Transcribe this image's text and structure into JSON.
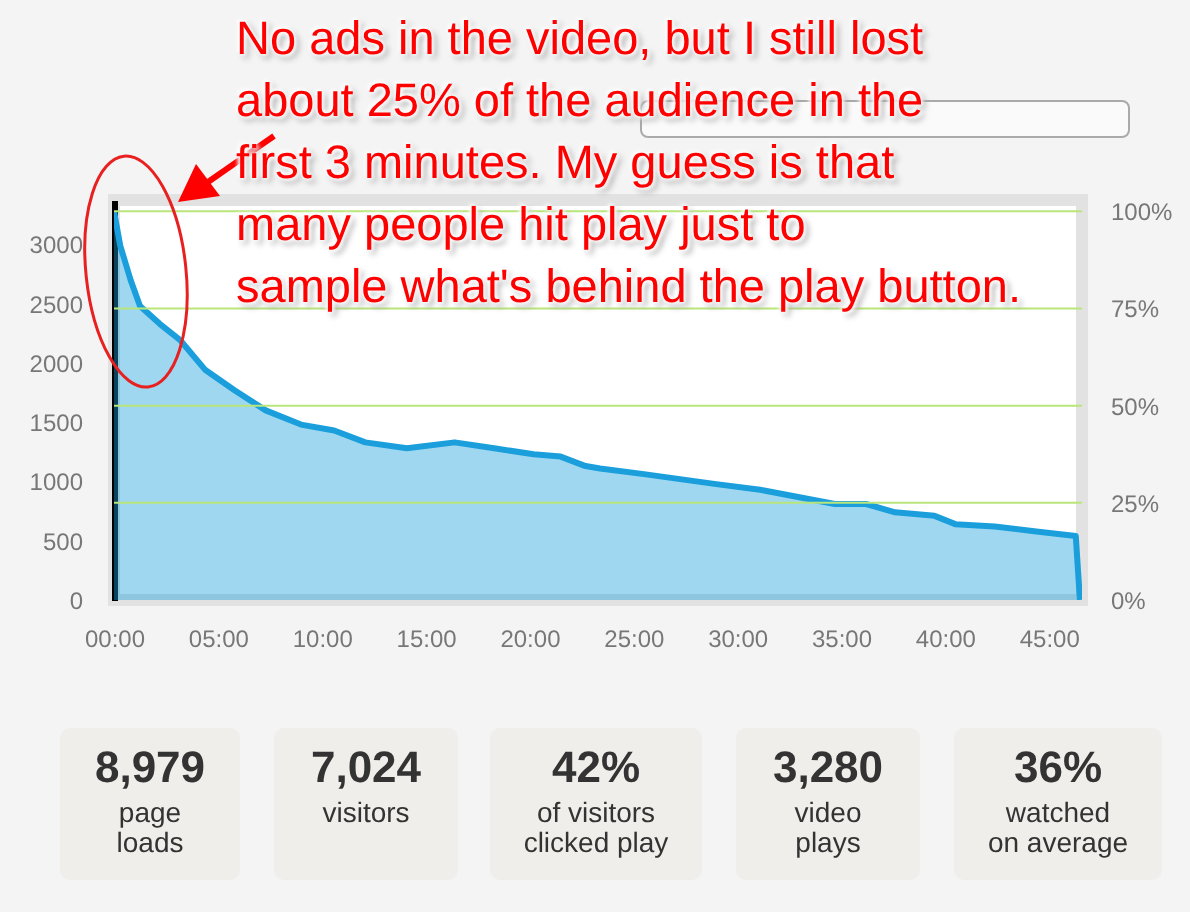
{
  "chart_data": [
    {
      "type": "area",
      "annotations": [
        "No ads in the video, but I still lost\nabout 25% of the audience in the\nfirst 3 minutes. My guess is that\nmany people hit play just to\nsample what's behind the play button."
      ],
      "x": [
        0,
        0.3,
        0.8,
        1.25,
        2.2,
        3.2,
        4.4,
        5.8,
        7.3,
        9.0,
        10.6,
        12.1,
        14.1,
        16.4,
        18.3,
        20.2,
        21.5,
        22.7,
        23.4,
        25.6,
        28.9,
        31.1,
        34.7,
        36.2,
        37.6,
        39.5,
        40.5,
        42.4,
        44.3,
        46.3,
        46.5
      ],
      "series": [
        {
          "color": "#1a9fdc",
          "values": [
            3280,
            2990,
            2700,
            2480,
            2330,
            2190,
            1940,
            1770,
            1600,
            1480,
            1430,
            1330,
            1280,
            1330,
            1280,
            1230,
            1210,
            1130,
            1110,
            1060,
            980,
            930,
            810,
            810,
            740,
            710,
            640,
            620,
            580,
            540,
            0
          ]
        }
      ],
      "xlim": [
        0,
        46.6
      ],
      "xticks": [
        {
          "value": 0,
          "label": "00:00"
        },
        {
          "value": 5,
          "label": "05:00"
        },
        {
          "value": 10,
          "label": "10:00"
        },
        {
          "value": 15,
          "label": "15:00"
        },
        {
          "value": 20,
          "label": "20:00"
        },
        {
          "value": 25,
          "label": "25:00"
        },
        {
          "value": 30,
          "label": "30:00"
        },
        {
          "value": 35,
          "label": "35:00"
        },
        {
          "value": 40,
          "label": "40:00"
        },
        {
          "value": 45,
          "label": "45:00"
        }
      ],
      "ylim": [
        0,
        3375
      ],
      "yticks": [
        0,
        500,
        1000,
        1500,
        2000,
        2500,
        3000
      ],
      "y2lim": [
        0,
        102.9
      ],
      "y2ticks": [
        {
          "value": 0,
          "label": "0%"
        },
        {
          "value": 25,
          "label": "25%"
        },
        {
          "value": 50,
          "label": "50%"
        },
        {
          "value": 75,
          "label": "75%"
        },
        {
          "value": 100,
          "label": "100%"
        }
      ],
      "grid": true
    },
    {
      "type": "other",
      "annotations": [
        "8,979\npage\nloads",
        "7,024\nvisitors",
        "42%\nof visitors\nclicked play",
        "3,280\nvideo\nplays",
        "36%\nwatched\non average"
      ]
    }
  ]
}
